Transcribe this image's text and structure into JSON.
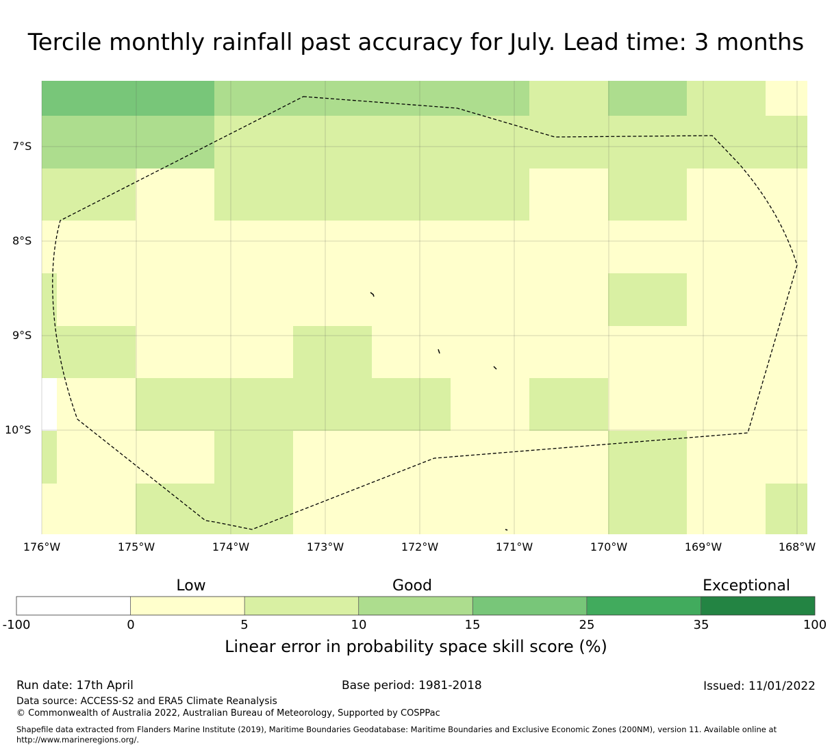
{
  "title": "Tercile monthly rainfall past accuracy for July. Lead time: 3 months",
  "map": {
    "lat_ticks": [
      "7°S",
      "8°S",
      "9°S",
      "10°S"
    ],
    "lon_ticks": [
      "176°W",
      "175°W",
      "174°W",
      "173°W",
      "172°W",
      "171°W",
      "170°W",
      "169°W",
      "168°W"
    ],
    "skill_grid_rows_north_to_south": [
      [
        3,
        3,
        2,
        2,
        2,
        2,
        1,
        2,
        1,
        0
      ],
      [
        2,
        2,
        1,
        1,
        1,
        1,
        1,
        1,
        1,
        1
      ],
      [
        1,
        0,
        1,
        1,
        1,
        1,
        0,
        1,
        0,
        0
      ],
      [
        0,
        0,
        0,
        0,
        0,
        0,
        0,
        0,
        0,
        0
      ],
      [
        0,
        0,
        0,
        0,
        0,
        0,
        0,
        1,
        0,
        0
      ],
      [
        1,
        0,
        0,
        1,
        0,
        0,
        0,
        0,
        0,
        0
      ],
      [
        0,
        1,
        1,
        1,
        1,
        0,
        1,
        0,
        0,
        0
      ],
      [
        0,
        0,
        1,
        0,
        0,
        0,
        0,
        1,
        0,
        0
      ],
      [
        0,
        1,
        1,
        0,
        0,
        0,
        0,
        1,
        0,
        1
      ]
    ],
    "skill_grid_class_index_note_colors": "0=0-5,1=5-10,2=10-15,3=15-25"
  },
  "colorbar": {
    "categories": [
      {
        "label": "Low",
        "at_boundary": 1.5
      },
      {
        "label": "Good",
        "at_boundary": 3.5
      },
      {
        "label": "Exceptional",
        "at_boundary": 6.4
      }
    ],
    "ticks": [
      "-100",
      "0",
      "5",
      "10",
      "15",
      "25",
      "35",
      "100"
    ],
    "colors": [
      "#ffffff",
      "#ffffcc",
      "#d9f0a3",
      "#addd8e",
      "#78c679",
      "#41ab5d",
      "#238443"
    ],
    "label": "Linear error in probability space skill score (%)"
  },
  "footer": {
    "run_date": "Run date: 17th April",
    "base_period": "Base period: 1981-2018",
    "issued": "Issued: 11/01/2022",
    "data_source": "Data source: ACCESS-S2 and ERA5 Climate Reanalysis",
    "copyright": "© Commonwealth of Australia 2022, Australian Bureau of Meteorology, Supported by COSPPac",
    "shapefile_line1": "Shapefile data extracted from Flanders Marine Institute (2019), Maritime Boundaries Geodatabase: Maritime Boundaries and Exclusive Economic Zones (200NM), version 11. Available online at",
    "shapefile_line2": "http://www.marineregions.org/."
  }
}
